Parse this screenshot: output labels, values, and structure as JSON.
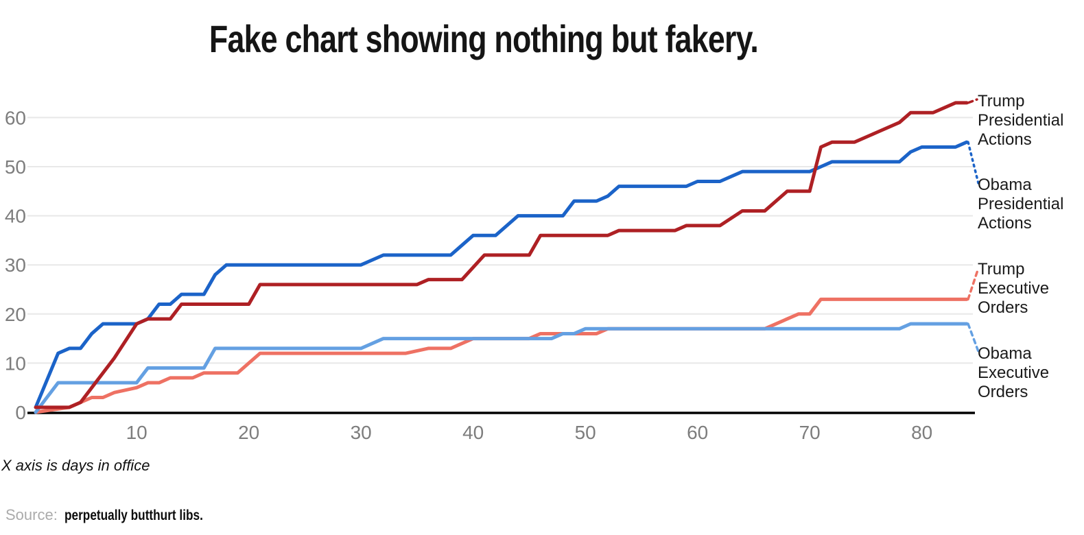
{
  "title": "Fake chart showing nothing but fakery.",
  "annotation": "X axis is days in office",
  "source": {
    "label": "Source:",
    "text": "perpetually butthurt libs."
  },
  "colors": {
    "trump_presidential": "#ae2024",
    "obama_presidential": "#1b63c8",
    "trump_executive": "#ee7163",
    "obama_executive": "#64a0e2",
    "gridline": "#e8e8e8",
    "axis": "#000000",
    "tick_text": "#7d7d7d"
  },
  "chart_data": {
    "type": "line",
    "title": "Fake chart showing nothing but fakery.",
    "xlabel_note": "X axis is days in office",
    "x_axis": {
      "ticks": [
        10,
        20,
        30,
        40,
        50,
        60,
        70,
        80
      ],
      "range": [
        1,
        84
      ]
    },
    "y_axis": {
      "ticks": [
        0,
        10,
        20,
        30,
        40,
        50,
        60
      ],
      "range": [
        0,
        63
      ]
    },
    "grid": true,
    "legend_position": "right",
    "series": [
      {
        "name": "Trump Presidential Actions",
        "label_lines": [
          "Trump",
          "Presidential",
          "Actions"
        ],
        "color": "#ae2024",
        "leader_style": "dashed",
        "final_value": 63,
        "points": [
          [
            1,
            1
          ],
          [
            4,
            1
          ],
          [
            5,
            2
          ],
          [
            6,
            5
          ],
          [
            8,
            11
          ],
          [
            10,
            18
          ],
          [
            11,
            19
          ],
          [
            13,
            19
          ],
          [
            14,
            22
          ],
          [
            20,
            22
          ],
          [
            21,
            26
          ],
          [
            35,
            26
          ],
          [
            36,
            27
          ],
          [
            39,
            27
          ],
          [
            41,
            32
          ],
          [
            45,
            32
          ],
          [
            46,
            36
          ],
          [
            52,
            36
          ],
          [
            53,
            37
          ],
          [
            58,
            37
          ],
          [
            59,
            38
          ],
          [
            62,
            38
          ],
          [
            64,
            41
          ],
          [
            66,
            41
          ],
          [
            68,
            45
          ],
          [
            70,
            45
          ],
          [
            71,
            54
          ],
          [
            72,
            55
          ],
          [
            74,
            55
          ],
          [
            76,
            57
          ],
          [
            78,
            59
          ],
          [
            79,
            61
          ],
          [
            81,
            61
          ],
          [
            83,
            63
          ],
          [
            84,
            63
          ]
        ]
      },
      {
        "name": "Obama Presidential Actions",
        "label_lines": [
          "Obama",
          "Presidential",
          "Actions"
        ],
        "color": "#1b63c8",
        "leader_style": "dotted",
        "final_value": 55,
        "points": [
          [
            1,
            1
          ],
          [
            3,
            12
          ],
          [
            4,
            13
          ],
          [
            5,
            13
          ],
          [
            6,
            16
          ],
          [
            7,
            18
          ],
          [
            10,
            18
          ],
          [
            11,
            19
          ],
          [
            12,
            22
          ],
          [
            13,
            22
          ],
          [
            14,
            24
          ],
          [
            16,
            24
          ],
          [
            17,
            28
          ],
          [
            18,
            30
          ],
          [
            30,
            30
          ],
          [
            32,
            32
          ],
          [
            38,
            32
          ],
          [
            39,
            34
          ],
          [
            40,
            36
          ],
          [
            42,
            36
          ],
          [
            44,
            40
          ],
          [
            48,
            40
          ],
          [
            49,
            43
          ],
          [
            51,
            43
          ],
          [
            52,
            44
          ],
          [
            53,
            46
          ],
          [
            59,
            46
          ],
          [
            60,
            47
          ],
          [
            62,
            47
          ],
          [
            64,
            49
          ],
          [
            70,
            49
          ],
          [
            71,
            50
          ],
          [
            72,
            51
          ],
          [
            78,
            51
          ],
          [
            79,
            53
          ],
          [
            80,
            54
          ],
          [
            83,
            54
          ],
          [
            84,
            55
          ]
        ]
      },
      {
        "name": "Trump Executive Orders",
        "label_lines": [
          "Trump",
          "Executive",
          "Orders"
        ],
        "color": "#ee7163",
        "leader_style": "dashed",
        "final_value": 23,
        "points": [
          [
            1,
            0
          ],
          [
            4,
            1
          ],
          [
            6,
            3
          ],
          [
            7,
            3
          ],
          [
            8,
            4
          ],
          [
            10,
            5
          ],
          [
            11,
            6
          ],
          [
            12,
            6
          ],
          [
            13,
            7
          ],
          [
            15,
            7
          ],
          [
            16,
            8
          ],
          [
            19,
            8
          ],
          [
            20,
            10
          ],
          [
            21,
            12
          ],
          [
            34,
            12
          ],
          [
            36,
            13
          ],
          [
            38,
            13
          ],
          [
            40,
            15
          ],
          [
            45,
            15
          ],
          [
            46,
            16
          ],
          [
            51,
            16
          ],
          [
            52,
            17
          ],
          [
            66,
            17
          ],
          [
            68,
            19
          ],
          [
            69,
            20
          ],
          [
            70,
            20
          ],
          [
            71,
            23
          ],
          [
            84,
            23
          ]
        ]
      },
      {
        "name": "Obama Executive Orders",
        "label_lines": [
          "Obama",
          "Executive",
          "Orders"
        ],
        "color": "#64a0e2",
        "leader_style": "dashed",
        "final_value": 18,
        "points": [
          [
            1,
            0
          ],
          [
            3,
            6
          ],
          [
            10,
            6
          ],
          [
            11,
            9
          ],
          [
            16,
            9
          ],
          [
            17,
            13
          ],
          [
            30,
            13
          ],
          [
            32,
            15
          ],
          [
            47,
            15
          ],
          [
            48,
            16
          ],
          [
            49,
            16
          ],
          [
            50,
            17
          ],
          [
            78,
            17
          ],
          [
            79,
            18
          ],
          [
            84,
            18
          ]
        ]
      }
    ]
  }
}
